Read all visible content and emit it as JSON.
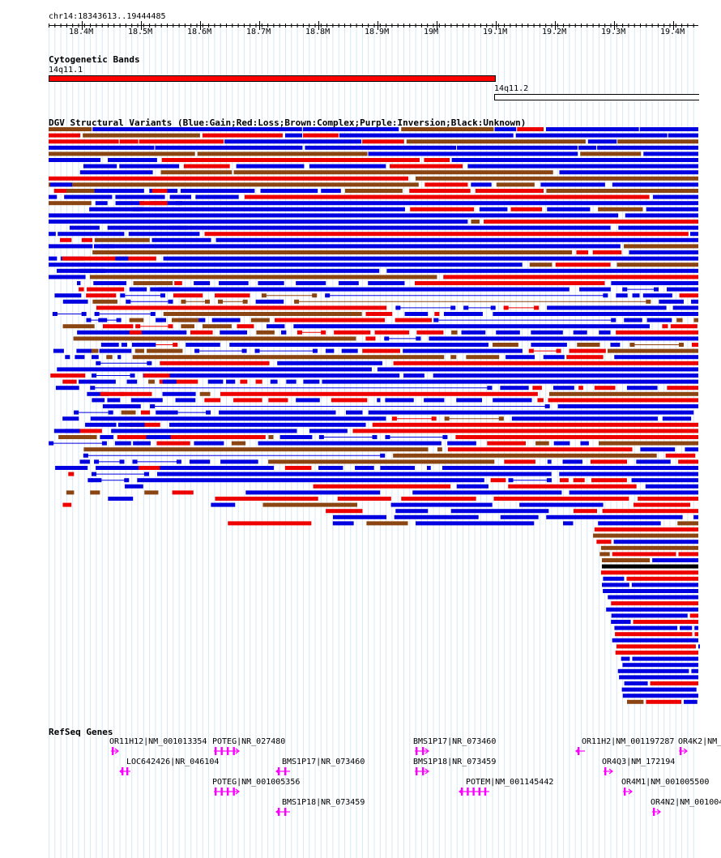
{
  "region_label": "chr14:18343613..19444485",
  "ruler": {
    "ticks": [
      "18.4M",
      "18.5M",
      "18.6M",
      "18.7M",
      "18.8M",
      "18.9M",
      "19M",
      "19.1M",
      "19.2M",
      "19.3M",
      "19.4M"
    ]
  },
  "cytoband": {
    "title": "Cytogenetic Bands",
    "bands": [
      {
        "name": "14q11.1",
        "color": "#ff0000"
      },
      {
        "name": "14q11.2",
        "color": "#ffffff"
      }
    ]
  },
  "dgv": {
    "title": "DGV Structural Variants (Blue:Gain;Red:Loss;Brown:Complex;Purple:Inversion;Black:Unknown)",
    "colors": {
      "gain": "#0000e0",
      "loss": "#ee0000",
      "complex": "#8b4513",
      "unknown": "#000000"
    }
  },
  "refseq": {
    "title": "RefSeq Genes",
    "color": "#ff00ff",
    "genes": [
      {
        "label": "OR11H12|NM_001013354",
        "strand": "+"
      },
      {
        "label": "POTEG|NR_027480",
        "strand": "+"
      },
      {
        "label": "BMS1P17|NR_073460",
        "strand": "+"
      },
      {
        "label": "OR11H2|NM_001197287",
        "strand": "-"
      },
      {
        "label": "OR4K2|NM_",
        "strand": "+"
      },
      {
        "label": "LOC642426|NR_046104",
        "strand": "-"
      },
      {
        "label": "BMS1P17|NR_073460",
        "strand": "-"
      },
      {
        "label": "BMS1P18|NR_073459",
        "strand": "+"
      },
      {
        "label": "OR4Q3|NM_172194",
        "strand": "+"
      },
      {
        "label": "POTEG|NM_001005356",
        "strand": "+"
      },
      {
        "label": "POTEM|NM_001145442",
        "strand": "-"
      },
      {
        "label": "OR4M1|NM_001005500",
        "strand": "+"
      },
      {
        "label": "BMS1P18|NR_073459",
        "strand": "-"
      },
      {
        "label": "OR4N2|NM_001004",
        "strand": "+"
      }
    ]
  }
}
